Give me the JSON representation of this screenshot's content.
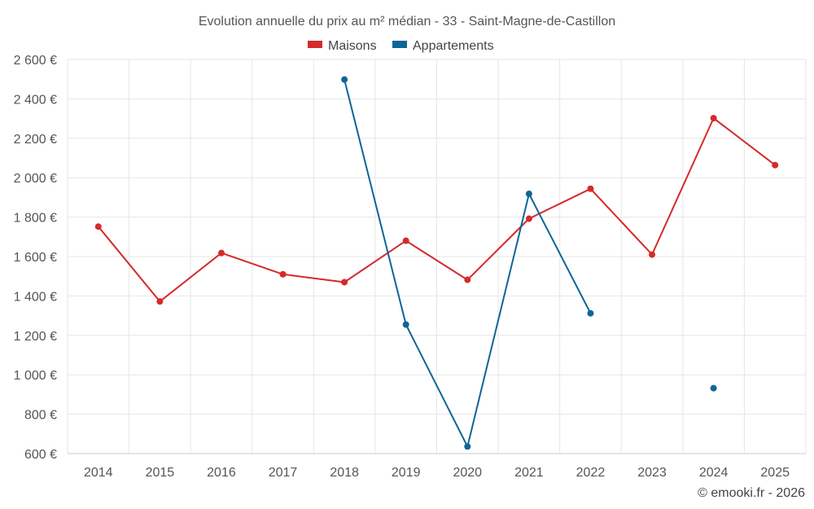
{
  "chart_data": {
    "type": "line",
    "title": "Evolution annuelle du prix au m² médian - 33 - Saint-Magne-de-Castillon",
    "categories": [
      "2014",
      "2015",
      "2016",
      "2017",
      "2018",
      "2019",
      "2020",
      "2021",
      "2022",
      "2023",
      "2024",
      "2025"
    ],
    "ylim": [
      600,
      2600
    ],
    "yticks": [
      600,
      800,
      1000,
      1200,
      1400,
      1600,
      1800,
      2000,
      2200,
      2400,
      2600
    ],
    "ytick_labels": [
      "600 €",
      "800 €",
      "1 000 €",
      "1 200 €",
      "1 400 €",
      "1 600 €",
      "1 800 €",
      "2 000 €",
      "2 200 €",
      "2 400 €",
      "2 600 €"
    ],
    "grid": true,
    "legend_position": "top-center",
    "series": [
      {
        "name": "Maisons",
        "color": "#d42a2a",
        "values": [
          1752,
          1372,
          1618,
          1510,
          1470,
          1680,
          1482,
          1792,
          1944,
          1610,
          2302,
          2064
        ]
      },
      {
        "name": "Appartements",
        "color": "#0e6596",
        "values": [
          null,
          null,
          null,
          null,
          2498,
          1255,
          636,
          1918,
          1312,
          null,
          932,
          null
        ]
      }
    ],
    "credit": "© emooki.fr - 2026"
  }
}
